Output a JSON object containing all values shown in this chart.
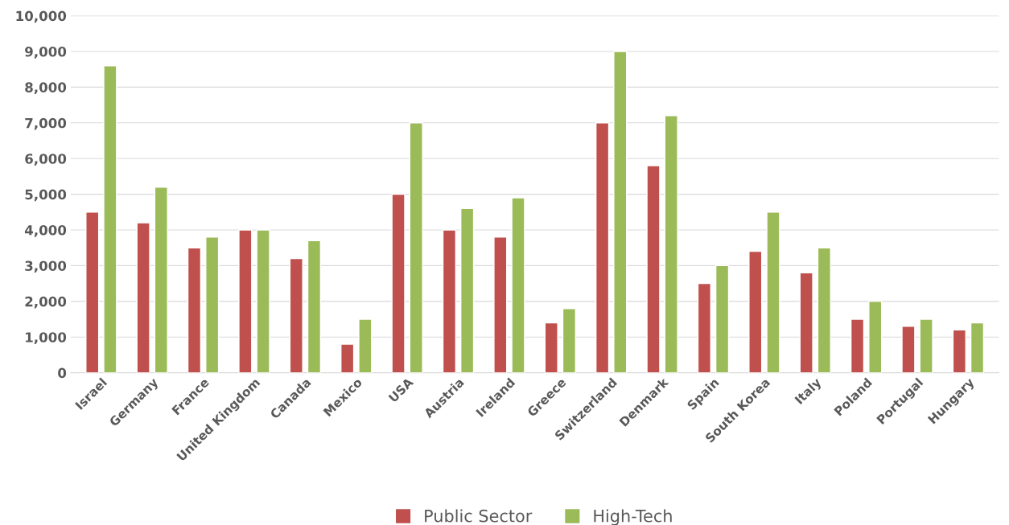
{
  "chart_data": {
    "type": "bar",
    "categories": [
      "Israel",
      "Germany",
      "France",
      "United Kingdom",
      "Canada",
      "Mexico",
      "USA",
      "Austria",
      "Ireland",
      "Greece",
      "Switzerland",
      "Denmark",
      "Spain",
      "South Korea",
      "Italy",
      "Poland",
      "Portugal",
      "Hungary"
    ],
    "series": [
      {
        "name": "Public Sector",
        "color": "#c0504d",
        "values": [
          4500,
          4200,
          3500,
          4000,
          3200,
          800,
          5000,
          4000,
          3800,
          1400,
          7000,
          5800,
          2500,
          3400,
          2800,
          1500,
          1300,
          1200
        ]
      },
      {
        "name": "High-Tech",
        "color": "#9bbb59",
        "values": [
          8600,
          5200,
          3800,
          4000,
          3700,
          1500,
          7000,
          4600,
          4900,
          1800,
          9000,
          7200,
          3000,
          4500,
          3500,
          2000,
          1500,
          1400
        ]
      }
    ],
    "ylim": [
      0,
      10000
    ],
    "yticks": [
      0,
      {
        "value": 1000,
        "label": "1,000"
      },
      {
        "value": 2000,
        "label": "2,000"
      },
      {
        "value": 3000,
        "label": "3,000"
      },
      {
        "value": 4000,
        "label": "4,000"
      },
      {
        "value": 5000,
        "label": "5,000"
      },
      {
        "value": 6000,
        "label": "6,000"
      },
      {
        "value": 7000,
        "label": "7,000"
      },
      {
        "value": 8000,
        "label": "8,000"
      },
      {
        "value": 9000,
        "label": "9,000"
      },
      {
        "value": 10000,
        "label": "10,000"
      }
    ],
    "grid": "y",
    "legend": "bottom"
  }
}
